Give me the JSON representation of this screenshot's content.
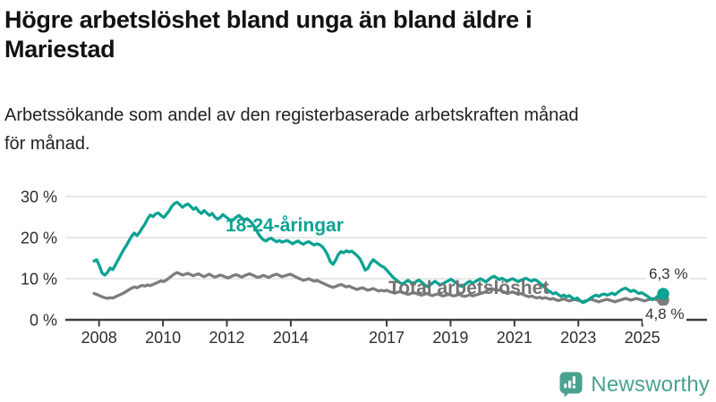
{
  "header": {
    "title_lines": [
      "Högre arbetslöshet bland unga än bland äldre i",
      "Mariestad"
    ],
    "subtitle_lines": [
      "Arbetssökande som andel av den registerbaserade arbetskraften månad",
      "för månad."
    ]
  },
  "chart_data": {
    "type": "line",
    "unit": "%",
    "frequency": "monthly",
    "x_start": "2008-01",
    "x_end": "2025-09",
    "ylim": [
      0,
      30
    ],
    "grid": "horizontal",
    "legend_position": "inline-labels",
    "y_ticks": [
      {
        "value": 0,
        "label": "0 %"
      },
      {
        "value": 10,
        "label": "10 %"
      },
      {
        "value": 20,
        "label": "20 %"
      },
      {
        "value": 30,
        "label": "30 %"
      }
    ],
    "x_ticks": [
      {
        "year": 2008,
        "label": "2008"
      },
      {
        "year": 2010,
        "label": "2010"
      },
      {
        "year": 2012,
        "label": "2012"
      },
      {
        "year": 2014,
        "label": "2014"
      },
      {
        "year": 2017,
        "label": "2017"
      },
      {
        "year": 2019,
        "label": "2019"
      },
      {
        "year": 2021,
        "label": "2021"
      },
      {
        "year": 2023,
        "label": "2023"
      },
      {
        "year": 2025,
        "label": "2025"
      }
    ],
    "series": [
      {
        "name": "Total arbetslöshet",
        "label": "Total arbetslöshet",
        "color": "#7d7d7d",
        "label_color": "#737373",
        "end_value": 4.8,
        "end_label": "4,8 %",
        "values": [
          6.4,
          6.2,
          5.9,
          5.6,
          5.4,
          5.2,
          5.4,
          5.3,
          5.6,
          5.9,
          6.2,
          6.5,
          6.9,
          7.3,
          7.7,
          8.0,
          7.8,
          8.1,
          8.4,
          8.2,
          8.5,
          8.3,
          8.6,
          8.9,
          9.2,
          9.5,
          9.3,
          9.7,
          10.2,
          10.7,
          11.2,
          11.5,
          11.2,
          10.9,
          11.1,
          11.3,
          11.0,
          10.7,
          11.0,
          11.2,
          10.8,
          10.5,
          10.8,
          11.1,
          10.7,
          10.4,
          10.6,
          10.9,
          10.7,
          10.4,
          10.2,
          10.5,
          10.8,
          11.0,
          10.7,
          10.4,
          10.7,
          11.0,
          11.2,
          10.9,
          10.6,
          10.3,
          10.5,
          10.8,
          10.6,
          10.3,
          10.6,
          10.9,
          11.1,
          10.8,
          10.5,
          10.7,
          10.9,
          11.1,
          10.8,
          10.5,
          10.2,
          9.9,
          9.6,
          9.8,
          10.0,
          9.7,
          9.4,
          9.6,
          9.3,
          9.0,
          8.7,
          8.4,
          8.1,
          7.9,
          8.1,
          8.4,
          8.6,
          8.3,
          8.0,
          8.2,
          7.9,
          7.6,
          7.4,
          7.6,
          7.8,
          7.5,
          7.2,
          7.4,
          7.6,
          7.3,
          7.0,
          7.2,
          7.0,
          7.2,
          6.9,
          6.7,
          6.5,
          6.7,
          6.9,
          6.6,
          6.4,
          6.2,
          6.4,
          6.6,
          6.4,
          6.2,
          6.0,
          6.2,
          6.4,
          6.1,
          5.9,
          6.1,
          6.3,
          6.0,
          5.8,
          6.0,
          6.2,
          6.0,
          5.8,
          6.0,
          6.2,
          5.9,
          5.7,
          5.9,
          6.1,
          5.8,
          6.0,
          6.2,
          6.4,
          6.6,
          6.9,
          7.3,
          7.6,
          7.4,
          7.1,
          7.3,
          7.0,
          6.7,
          6.4,
          6.6,
          6.8,
          6.5,
          6.2,
          6.4,
          6.1,
          5.8,
          5.6,
          5.8,
          5.5,
          5.3,
          5.5,
          5.2,
          5.4,
          5.2,
          5.0,
          5.2,
          4.9,
          4.7,
          4.9,
          5.1,
          4.8,
          4.6,
          4.8,
          5.0,
          4.8,
          4.6,
          4.4,
          4.6,
          4.8,
          5.0,
          4.8,
          4.6,
          4.4,
          4.6,
          4.8,
          5.0,
          4.8,
          4.6,
          4.4,
          4.6,
          4.8,
          5.0,
          5.2,
          5.0,
          4.8,
          5.0,
          5.2,
          5.0,
          4.8,
          4.6,
          4.8,
          5.0,
          5.2,
          5.0,
          4.8,
          4.6,
          4.8
        ]
      },
      {
        "name": "18-24-åringar",
        "label": "18-24-åringar",
        "color": "#0ca292",
        "label_color": "#0ca292",
        "end_value": 6.3,
        "end_label": "6,3 %",
        "values": [
          14.3,
          14.6,
          13.2,
          11.4,
          10.9,
          11.5,
          12.6,
          12.2,
          13.4,
          14.6,
          15.8,
          17.0,
          18.0,
          19.2,
          20.3,
          21.1,
          20.5,
          21.3,
          22.4,
          23.3,
          24.6,
          25.5,
          25.1,
          25.8,
          26.0,
          25.4,
          24.9,
          25.7,
          26.5,
          27.6,
          28.3,
          28.6,
          28.0,
          27.4,
          27.9,
          28.2,
          27.6,
          26.9,
          27.3,
          26.4,
          25.9,
          26.6,
          26.0,
          25.4,
          25.9,
          25.0,
          24.5,
          24.9,
          25.6,
          25.1,
          24.6,
          24.0,
          24.4,
          25.0,
          25.4,
          24.8,
          24.3,
          24.6,
          24.1,
          23.4,
          22.3,
          21.2,
          20.2,
          19.5,
          19.2,
          19.6,
          19.9,
          19.4,
          19.0,
          19.3,
          18.9,
          19.1,
          19.3,
          18.9,
          18.5,
          18.9,
          19.2,
          18.7,
          18.4,
          18.8,
          19.0,
          18.6,
          18.2,
          18.5,
          18.3,
          17.8,
          17.0,
          15.8,
          14.2,
          13.5,
          14.5,
          15.9,
          16.6,
          16.3,
          16.8,
          16.5,
          16.7,
          16.2,
          15.6,
          14.9,
          13.6,
          12.1,
          12.5,
          13.8,
          14.6,
          14.1,
          13.6,
          13.1,
          12.8,
          12.1,
          11.4,
          10.6,
          10.0,
          9.5,
          9.0,
          8.7,
          9.2,
          9.6,
          9.1,
          8.8,
          9.3,
          9.7,
          9.2,
          8.6,
          8.1,
          8.4,
          8.9,
          9.4,
          8.9,
          8.5,
          8.8,
          9.2,
          9.5,
          9.9,
          9.4,
          8.9,
          8.4,
          8.1,
          8.5,
          9.0,
          9.4,
          8.9,
          9.3,
          9.7,
          10.0,
          9.6,
          9.2,
          9.8,
          10.3,
          10.6,
          10.2,
          9.8,
          10.1,
          9.7,
          9.4,
          9.8,
          10.0,
          9.6,
          9.3,
          9.6,
          9.9,
          10.1,
          9.7,
          9.4,
          9.8,
          9.5,
          9.0,
          8.4,
          7.8,
          7.2,
          6.8,
          6.3,
          6.6,
          6.1,
          5.7,
          6.0,
          5.6,
          5.9,
          5.4,
          5.0,
          5.3,
          4.7,
          4.2,
          4.4,
          4.8,
          5.3,
          5.7,
          6.0,
          5.7,
          6.1,
          6.3,
          6.0,
          6.2,
          6.5,
          6.1,
          6.6,
          7.1,
          7.5,
          7.7,
          7.3,
          6.9,
          7.2,
          6.8,
          6.4,
          6.6,
          6.2,
          5.8,
          5.3,
          4.9,
          5.2,
          5.8,
          6.4,
          6.3
        ]
      }
    ]
  },
  "footer": {
    "brand": "Newsworthy"
  },
  "colors": {
    "teal": "#0ca292",
    "gray_line": "#7d7d7d",
    "gray_label": "#737373",
    "logo": "#49a28f",
    "grid": "#d9d9d9",
    "axis": "#3d3d3d",
    "axis_text": "#2e2e2e",
    "title_text": "#111111"
  }
}
